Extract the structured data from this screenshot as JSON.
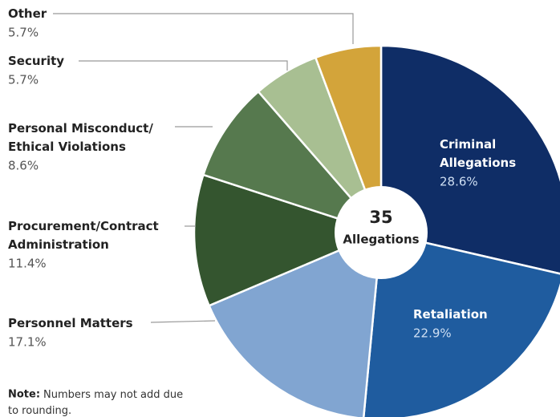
{
  "chart_data": {
    "type": "donut",
    "categories": [
      "Criminal\nAllegations",
      "Retaliation",
      "Personnel Matters",
      "Procurement/Contract\nAdministration",
      "Personal Misconduct/\nEthical Violations",
      "Security",
      "Other"
    ],
    "values": [
      28.6,
      22.9,
      17.1,
      11.4,
      8.6,
      5.7,
      5.7
    ],
    "value_labels": [
      "28.6%",
      "22.9%",
      "17.1%",
      "11.4%",
      "8.6%",
      "5.7%",
      "5.7%"
    ],
    "colors": [
      "#0f2d66",
      "#1f5c9f",
      "#81a5d1",
      "#34552f",
      "#56794e",
      "#a8bf92",
      "#d3a43a"
    ],
    "center_value": 35,
    "center_label": "Allegations",
    "note": {
      "label": "Note:",
      "text": "Numbers may not add due\nto rounding."
    }
  }
}
